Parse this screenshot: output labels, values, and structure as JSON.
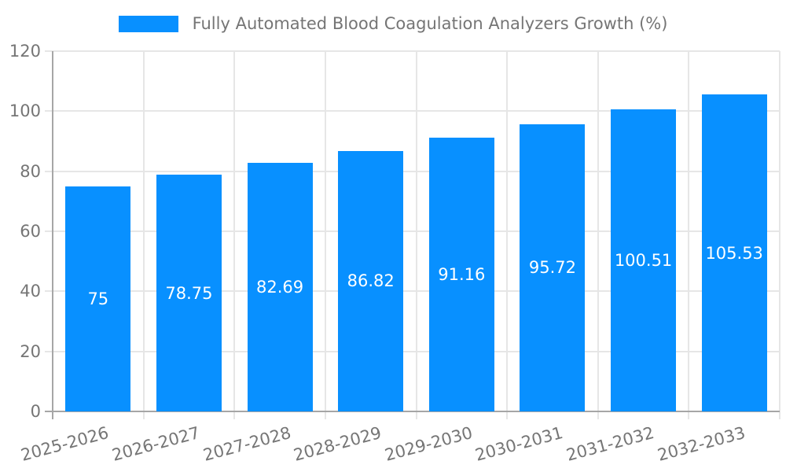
{
  "chart_data": {
    "type": "bar",
    "title": "",
    "legend": [
      "Fully Automated Blood Coagulation Analyzers Growth (%)"
    ],
    "legend_position": "top",
    "categories": [
      "2025-2026",
      "2026-2027",
      "2027-2028",
      "2028-2029",
      "2029-2030",
      "2030-2031",
      "2031-2032",
      "2032-2033"
    ],
    "values": [
      75,
      78.75,
      82.69,
      86.82,
      91.16,
      95.72,
      100.51,
      105.53
    ],
    "value_labels": [
      "75",
      "78.75",
      "82.69",
      "86.82",
      "91.16",
      "95.72",
      "100.51",
      "105.53"
    ],
    "xlabel": "",
    "ylabel": "",
    "ylim": [
      0,
      120
    ],
    "y_ticks": [
      0,
      20,
      40,
      60,
      80,
      100,
      120
    ],
    "grid": true,
    "colors": {
      "bar": "#0890FF",
      "axis_line": "#a6a6a6",
      "grid_line": "#e6e6e6",
      "tick_text": "#757575",
      "bar_label_text": "#ffffff"
    }
  }
}
